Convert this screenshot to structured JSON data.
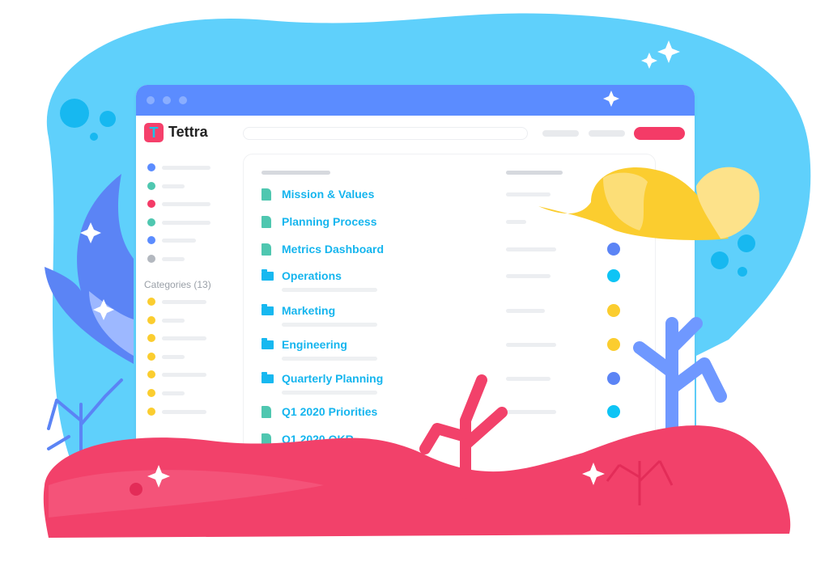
{
  "app": {
    "name": "Tettra",
    "logo_letter": "T"
  },
  "colors": {
    "titlebar": "#5b8cff",
    "accent_button": "#f43b67",
    "link": "#15b5ee",
    "doc_icon": "#4fc7b0",
    "folder_icon": "#17b8f0",
    "background_blob": "#5fd0fb",
    "seabed": "#f2416a"
  },
  "sidebar": {
    "dots": [
      "#5b8cff",
      "#4fc7b0",
      "#f43b67",
      "#4fc7b0",
      "#5b8cff",
      "#b3b8bf"
    ],
    "categories_label": "Categories (13)",
    "category_dots": [
      "#fbcd2f",
      "#fbcd2f",
      "#fbcd2f",
      "#fbcd2f",
      "#fbcd2f",
      "#fbcd2f",
      "#fbcd2f"
    ]
  },
  "items": [
    {
      "label": "Mission & Values",
      "icon": "document-icon",
      "dot": null
    },
    {
      "label": "Planning Process",
      "icon": "document-icon",
      "dot": null
    },
    {
      "label": "Metrics Dashboard",
      "icon": "document-icon",
      "dot": "#5b84f5"
    },
    {
      "label": "Operations",
      "icon": "folder-icon",
      "dot": "#0ec4f5"
    },
    {
      "label": "Marketing",
      "icon": "folder-icon",
      "dot": "#fbcd2f"
    },
    {
      "label": "Engineering",
      "icon": "folder-icon",
      "dot": "#fbcd2f"
    },
    {
      "label": "Quarterly Planning",
      "icon": "folder-icon",
      "dot": "#5b84f5"
    },
    {
      "label": "Q1 2020 Priorities",
      "icon": "document-icon",
      "dot": "#0ec4f5"
    },
    {
      "label": "Q1 2020 OKR",
      "icon": "document-icon",
      "dot": null
    }
  ]
}
